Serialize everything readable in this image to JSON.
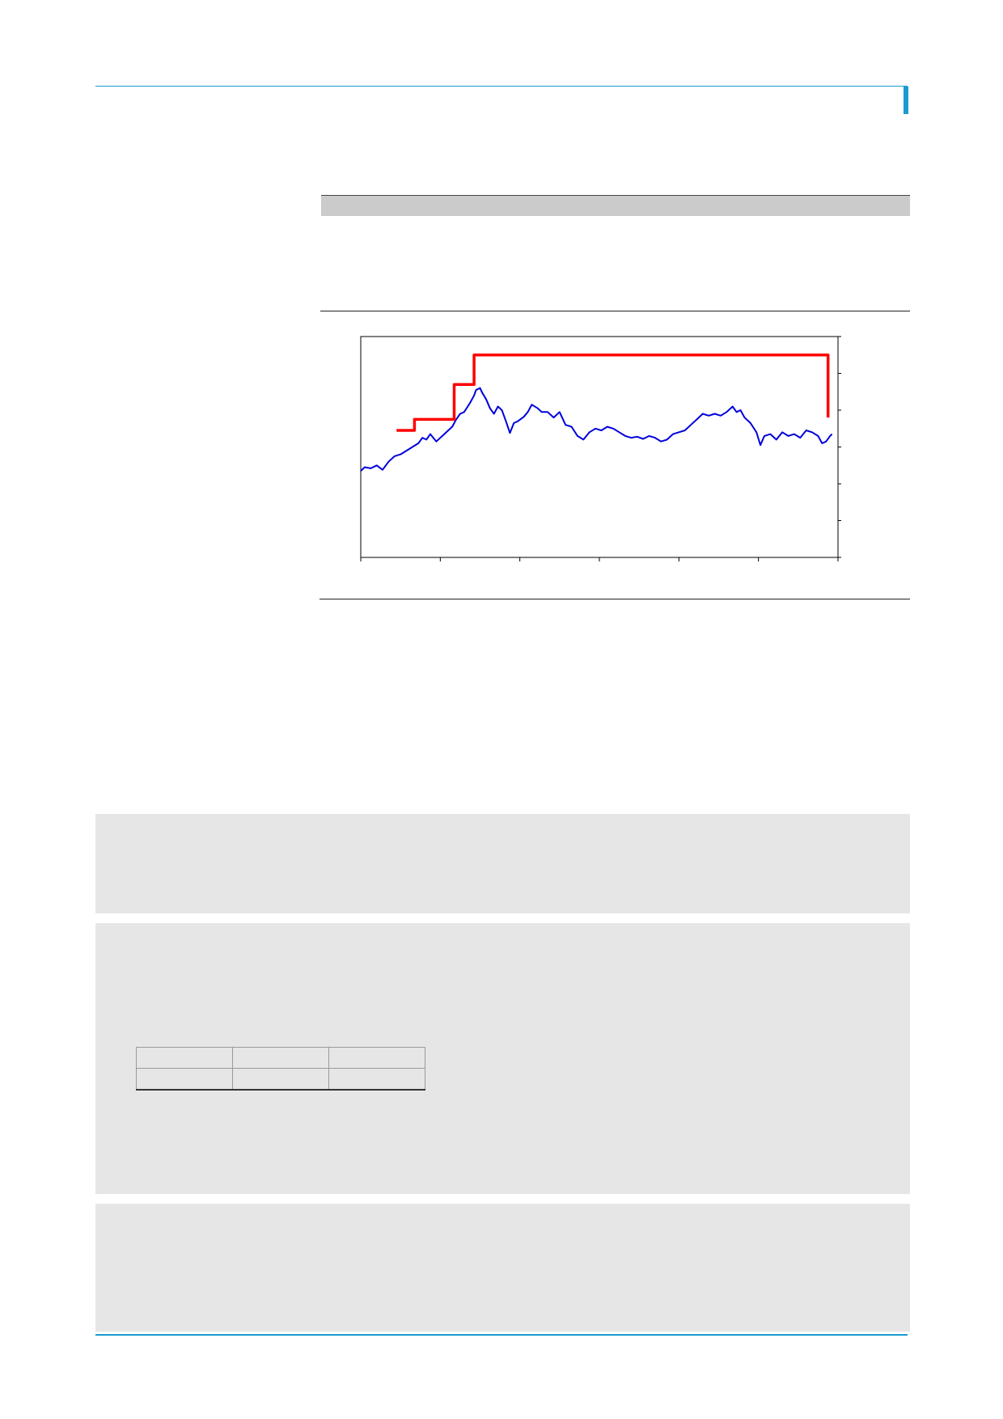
{
  "colors": {
    "accent": "#1a9bd0",
    "header_band": "#cbcbcb",
    "panel_background": "#e6e6e6",
    "price_line": "#0000dd",
    "target_line": "#ff0000"
  },
  "chart_data": {
    "type": "line",
    "title": "",
    "xlabel": "",
    "ylabel": "",
    "xlim": [
      0,
      12
    ],
    "ylim": [
      0,
      6
    ],
    "x_tick_count": 7,
    "y_tick_count": 7,
    "grid": false,
    "legend": "none",
    "series": [
      {
        "color": "#0000dd",
        "points": [
          [
            0,
            2.35
          ],
          [
            0.1,
            2.45
          ],
          [
            0.25,
            2.42
          ],
          [
            0.4,
            2.5
          ],
          [
            0.55,
            2.38
          ],
          [
            0.7,
            2.6
          ],
          [
            0.85,
            2.75
          ],
          [
            1.0,
            2.8
          ],
          [
            1.15,
            2.9
          ],
          [
            1.3,
            3.0
          ],
          [
            1.45,
            3.1
          ],
          [
            1.55,
            3.25
          ],
          [
            1.65,
            3.2
          ],
          [
            1.75,
            3.35
          ],
          [
            1.9,
            3.15
          ],
          [
            2.05,
            3.3
          ],
          [
            2.2,
            3.45
          ],
          [
            2.3,
            3.55
          ],
          [
            2.4,
            3.75
          ],
          [
            2.5,
            3.9
          ],
          [
            2.6,
            3.95
          ],
          [
            2.75,
            4.2
          ],
          [
            2.85,
            4.4
          ],
          [
            2.9,
            4.55
          ],
          [
            3.0,
            4.6
          ],
          [
            3.05,
            4.48
          ],
          [
            3.15,
            4.3
          ],
          [
            3.25,
            4.05
          ],
          [
            3.35,
            3.9
          ],
          [
            3.45,
            4.1
          ],
          [
            3.55,
            4.0
          ],
          [
            3.65,
            3.7
          ],
          [
            3.75,
            3.38
          ],
          [
            3.85,
            3.65
          ],
          [
            3.95,
            3.7
          ],
          [
            4.1,
            3.82
          ],
          [
            4.2,
            3.95
          ],
          [
            4.3,
            4.15
          ],
          [
            4.45,
            4.05
          ],
          [
            4.55,
            3.95
          ],
          [
            4.7,
            3.95
          ],
          [
            4.85,
            3.8
          ],
          [
            5.0,
            3.95
          ],
          [
            5.15,
            3.6
          ],
          [
            5.3,
            3.55
          ],
          [
            5.45,
            3.3
          ],
          [
            5.6,
            3.2
          ],
          [
            5.75,
            3.4
          ],
          [
            5.9,
            3.5
          ],
          [
            6.05,
            3.45
          ],
          [
            6.2,
            3.55
          ],
          [
            6.35,
            3.5
          ],
          [
            6.5,
            3.4
          ],
          [
            6.65,
            3.3
          ],
          [
            6.8,
            3.25
          ],
          [
            6.95,
            3.28
          ],
          [
            7.1,
            3.22
          ],
          [
            7.25,
            3.3
          ],
          [
            7.4,
            3.25
          ],
          [
            7.55,
            3.15
          ],
          [
            7.7,
            3.2
          ],
          [
            7.85,
            3.35
          ],
          [
            8.0,
            3.4
          ],
          [
            8.15,
            3.45
          ],
          [
            8.3,
            3.6
          ],
          [
            8.45,
            3.75
          ],
          [
            8.6,
            3.9
          ],
          [
            8.75,
            3.85
          ],
          [
            8.9,
            3.9
          ],
          [
            9.05,
            3.85
          ],
          [
            9.2,
            3.95
          ],
          [
            9.35,
            4.1
          ],
          [
            9.45,
            3.95
          ],
          [
            9.55,
            4.0
          ],
          [
            9.65,
            3.8
          ],
          [
            9.8,
            3.65
          ],
          [
            9.95,
            3.4
          ],
          [
            10.05,
            3.05
          ],
          [
            10.15,
            3.3
          ],
          [
            10.3,
            3.35
          ],
          [
            10.45,
            3.2
          ],
          [
            10.6,
            3.4
          ],
          [
            10.75,
            3.3
          ],
          [
            10.9,
            3.35
          ],
          [
            11.05,
            3.25
          ],
          [
            11.2,
            3.45
          ],
          [
            11.35,
            3.4
          ],
          [
            11.5,
            3.3
          ],
          [
            11.6,
            3.1
          ],
          [
            11.7,
            3.15
          ],
          [
            11.8,
            3.3
          ],
          [
            11.85,
            3.35
          ]
        ]
      },
      {
        "color": "#ff0000",
        "step": true,
        "points": [
          [
            0.9,
            3.45
          ],
          [
            1.35,
            3.45
          ],
          [
            1.35,
            3.75
          ],
          [
            2.35,
            3.75
          ],
          [
            2.35,
            4.7
          ],
          [
            2.85,
            4.7
          ],
          [
            2.85,
            5.5
          ],
          [
            11.75,
            5.5
          ],
          [
            11.75,
            3.8
          ]
        ]
      }
    ]
  },
  "table": {
    "rows": [
      [
        "",
        "",
        ""
      ],
      [
        "",
        "",
        ""
      ]
    ]
  }
}
